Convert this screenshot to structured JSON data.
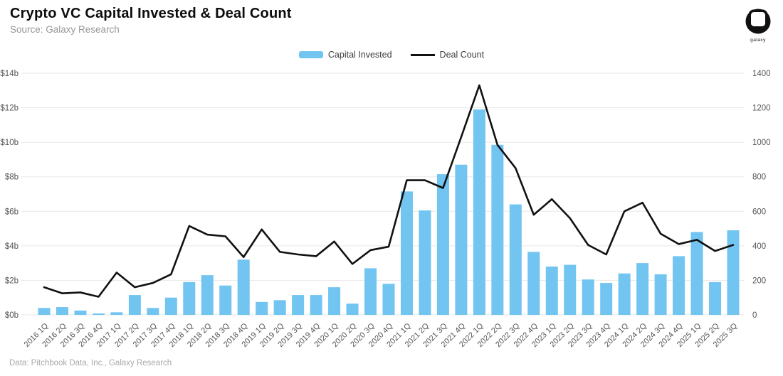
{
  "header": {
    "title": "Crypto VC Capital Invested & Deal Count",
    "source": "Source: Galaxy Research",
    "logo_text": "galaxy"
  },
  "legend": [
    {
      "label": "Capital Invested",
      "type": "bar",
      "color": "#72C4F1"
    },
    {
      "label": "Deal Count",
      "type": "line",
      "color": "#111111"
    }
  ],
  "footer": {
    "credit": "Data: Pitchbook Data, Inc., Galaxy Research"
  },
  "colors": {
    "bar": "#72C4F1",
    "line": "#111111",
    "grid": "#e7e7e7",
    "axis_text": "#555555"
  },
  "chart_data": {
    "type": "bar",
    "subtype": "bar+line dual-axis",
    "title": "Crypto VC Capital Invested & Deal Count",
    "categories": [
      "2016 1Q",
      "2016 2Q",
      "2016 3Q",
      "2016 4Q",
      "2017 1Q",
      "2017 2Q",
      "2017 3Q",
      "2017 4Q",
      "2018 1Q",
      "2018 2Q",
      "2018 3Q",
      "2018 4Q",
      "2019 1Q",
      "2019 2Q",
      "2019 3Q",
      "2019 4Q",
      "2020 1Q",
      "2020 2Q",
      "2020 3Q",
      "2020 4Q",
      "2021 1Q",
      "2021 2Q",
      "2021 3Q",
      "2021 4Q",
      "2022 1Q",
      "2022 2Q",
      "2022 3Q",
      "2022 4Q",
      "2023 1Q",
      "2023 2Q",
      "2023 3Q",
      "2023 4Q",
      "2024 1Q",
      "2024 2Q",
      "2024 3Q",
      "2024 4Q",
      "2025 1Q",
      "2025 2Q",
      "2025 3Q"
    ],
    "series": [
      {
        "name": "Capital Invested",
        "type": "bar",
        "axis": "left",
        "unit": "$ billions",
        "values": [
          0.4,
          0.45,
          0.25,
          0.08,
          0.15,
          1.15,
          0.4,
          1.0,
          1.9,
          2.3,
          1.7,
          3.2,
          0.75,
          0.85,
          1.15,
          1.15,
          1.6,
          0.65,
          2.7,
          1.8,
          7.15,
          6.05,
          8.15,
          8.7,
          11.9,
          9.85,
          6.4,
          3.65,
          2.8,
          2.9,
          2.05,
          1.85,
          2.4,
          3.0,
          2.35,
          3.4,
          4.8,
          1.9,
          4.9
        ]
      },
      {
        "name": "Deal Count",
        "type": "line",
        "axis": "right",
        "unit": "deals",
        "values": [
          160,
          125,
          130,
          105,
          245,
          160,
          185,
          235,
          515,
          465,
          455,
          335,
          495,
          365,
          350,
          340,
          425,
          295,
          375,
          395,
          780,
          780,
          735,
          1030,
          1330,
          985,
          850,
          580,
          670,
          560,
          405,
          350,
          600,
          650,
          470,
          410,
          435,
          370,
          405
        ]
      }
    ],
    "left_axis": {
      "min": 0,
      "max": 14,
      "step": 2,
      "tick_labels": [
        "$0b",
        "$2b",
        "$4b",
        "$6b",
        "$8b",
        "$10b",
        "$12b",
        "$14b"
      ]
    },
    "right_axis": {
      "min": 0,
      "max": 1400,
      "step": 200,
      "tick_labels": [
        "0",
        "200",
        "400",
        "600",
        "800",
        "1000",
        "1200",
        "1400"
      ]
    },
    "grid": true,
    "legend_position": "top-center",
    "x_tick_rotation": -45
  }
}
